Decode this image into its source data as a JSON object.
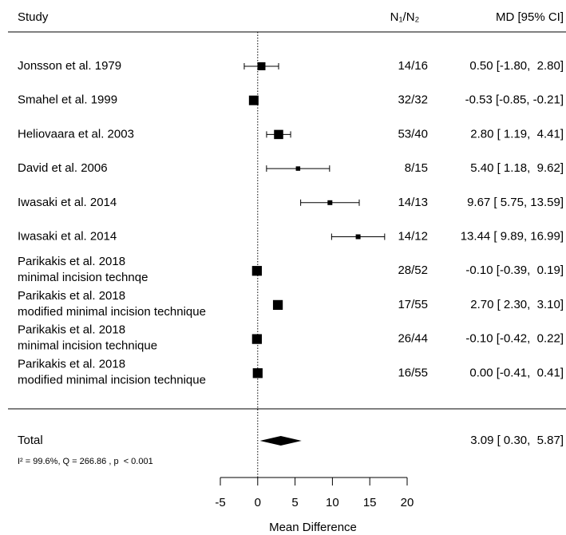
{
  "chart_data": {
    "type": "forest",
    "columns": {
      "study": "Study",
      "n": "N₁/N₂",
      "estimate": "MD [95% CI]"
    },
    "studies": [
      {
        "label": "Jonsson et al. 1979",
        "n": "14/16",
        "md": 0.5,
        "lo": -1.8,
        "hi": 2.8,
        "ci_label": "0.50 [-1.80,  2.80]",
        "weight": 10
      },
      {
        "label": "Smahel et al. 1999",
        "n": "32/32",
        "md": -0.53,
        "lo": -0.85,
        "hi": -0.21,
        "ci_label": "-0.53 [-0.85, -0.21]",
        "weight": 12
      },
      {
        "label": "Heliovaara et al. 2003",
        "n": "53/40",
        "md": 2.8,
        "lo": 1.19,
        "hi": 4.41,
        "ci_label": "2.80 [ 1.19,  4.41]",
        "weight": 11.5
      },
      {
        "label": "David et al. 2006",
        "n": "8/15",
        "md": 5.4,
        "lo": 1.18,
        "hi": 9.62,
        "ci_label": "5.40 [ 1.18,  9.62]",
        "weight": 5.5
      },
      {
        "label": "Iwasaki et al. 2014",
        "n": "14/13",
        "md": 9.67,
        "lo": 5.75,
        "hi": 13.59,
        "ci_label": "9.67 [ 5.75, 13.59]",
        "weight": 6
      },
      {
        "label": "Iwasaki et al. 2014",
        "n": "14/12",
        "md": 13.44,
        "lo": 9.89,
        "hi": 16.99,
        "ci_label": "13.44 [ 9.89, 16.99]",
        "weight": 6
      },
      {
        "label": "Parikakis et al. 2018",
        "sublabel": "minimal incision technqe",
        "n": "28/52",
        "md": -0.1,
        "lo": -0.39,
        "hi": 0.19,
        "ci_label": "-0.10 [-0.39,  0.19]",
        "weight": 12.25
      },
      {
        "label": "Parikakis et al. 2018",
        "sublabel": "modified minimal incision technique",
        "n": "17/55",
        "md": 2.7,
        "lo": 2.3,
        "hi": 3.1,
        "ci_label": "2.70 [ 2.30,  3.10]",
        "weight": 12.25
      },
      {
        "label": "Parikakis et al. 2018",
        "sublabel": "minimal incision technique",
        "n": "26/44",
        "md": -0.1,
        "lo": -0.42,
        "hi": 0.22,
        "ci_label": "-0.10 [-0.42,  0.22]",
        "weight": 12.25
      },
      {
        "label": "Parikakis et al. 2018",
        "sublabel": "modified minimal incision technique",
        "n": "16/55",
        "md": 0.0,
        "lo": -0.41,
        "hi": 0.41,
        "ci_label": "0.00 [-0.41,  0.41]",
        "weight": 12.25
      }
    ],
    "total": {
      "label": "Total",
      "md": 3.09,
      "lo": 0.3,
      "hi": 5.87,
      "ci_label": "3.09 [ 0.30,  5.87]",
      "heterogeneity": "I² = 99.6%, Q = 266.86 , p  < 0.001"
    },
    "xlabel": "Mean Difference",
    "xlim": [
      -5,
      20
    ],
    "xticks": [
      -5,
      0,
      5,
      10,
      15,
      20
    ],
    "color": "#000000"
  }
}
